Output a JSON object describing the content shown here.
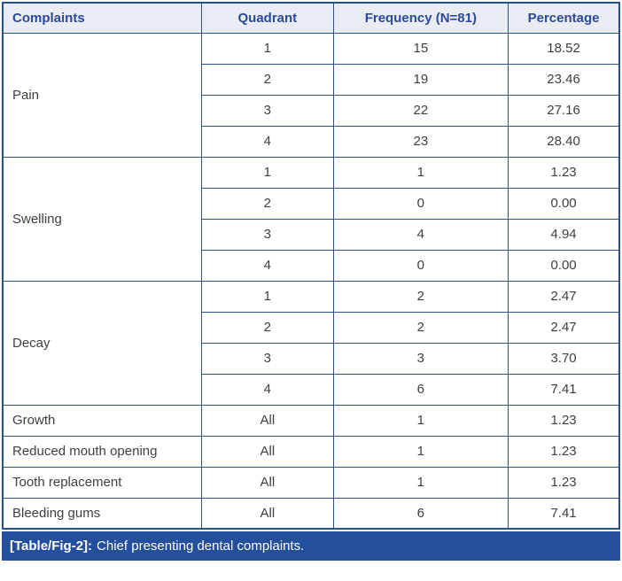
{
  "table": {
    "columns": [
      "Complaints",
      "Quadrant",
      "Frequency (N=81)",
      "Percentage"
    ],
    "groups": [
      {
        "complaint": "Pain",
        "rows": [
          {
            "quadrant": "1",
            "frequency": "15",
            "percentage": "18.52"
          },
          {
            "quadrant": "2",
            "frequency": "19",
            "percentage": "23.46"
          },
          {
            "quadrant": "3",
            "frequency": "22",
            "percentage": "27.16"
          },
          {
            "quadrant": "4",
            "frequency": "23",
            "percentage": "28.40"
          }
        ]
      },
      {
        "complaint": "Swelling",
        "rows": [
          {
            "quadrant": "1",
            "frequency": "1",
            "percentage": "1.23"
          },
          {
            "quadrant": "2",
            "frequency": "0",
            "percentage": "0.00"
          },
          {
            "quadrant": "3",
            "frequency": "4",
            "percentage": "4.94"
          },
          {
            "quadrant": "4",
            "frequency": "0",
            "percentage": "0.00"
          }
        ]
      },
      {
        "complaint": "Decay",
        "rows": [
          {
            "quadrant": "1",
            "frequency": "2",
            "percentage": "2.47"
          },
          {
            "quadrant": "2",
            "frequency": "2",
            "percentage": "2.47"
          },
          {
            "quadrant": "3",
            "frequency": "3",
            "percentage": "3.70"
          },
          {
            "quadrant": "4",
            "frequency": "6",
            "percentage": "7.41"
          }
        ]
      },
      {
        "complaint": "Growth",
        "rows": [
          {
            "quadrant": "All",
            "frequency": "1",
            "percentage": "1.23"
          }
        ]
      },
      {
        "complaint": "Reduced mouth opening",
        "rows": [
          {
            "quadrant": "All",
            "frequency": "1",
            "percentage": "1.23"
          }
        ]
      },
      {
        "complaint": "Tooth replacement",
        "rows": [
          {
            "quadrant": "All",
            "frequency": "1",
            "percentage": "1.23"
          }
        ]
      },
      {
        "complaint": "Bleeding gums",
        "rows": [
          {
            "quadrant": "All",
            "frequency": "6",
            "percentage": "7.41"
          }
        ]
      }
    ]
  },
  "caption": {
    "label": "[Table/Fig-2]:",
    "text": "Chief presenting dental complaints."
  },
  "colors": {
    "border": "#2d5381",
    "outer_border": "#26508c",
    "header_bg": "#eaecf3",
    "header_text": "#2b4a9c",
    "body_text": "#3f3f42",
    "caption_bg": "#244f9d",
    "caption_text": "#ffffff"
  },
  "chart_data": {
    "type": "table",
    "title": "[Table/Fig-2]: Chief presenting dental complaints.",
    "columns": [
      "Complaints",
      "Quadrant",
      "Frequency (N=81)",
      "Percentage"
    ],
    "rows": [
      [
        "Pain",
        "1",
        15,
        18.52
      ],
      [
        "Pain",
        "2",
        19,
        23.46
      ],
      [
        "Pain",
        "3",
        22,
        27.16
      ],
      [
        "Pain",
        "4",
        23,
        28.4
      ],
      [
        "Swelling",
        "1",
        1,
        1.23
      ],
      [
        "Swelling",
        "2",
        0,
        0.0
      ],
      [
        "Swelling",
        "3",
        4,
        4.94
      ],
      [
        "Swelling",
        "4",
        0,
        0.0
      ],
      [
        "Decay",
        "1",
        2,
        2.47
      ],
      [
        "Decay",
        "2",
        2,
        2.47
      ],
      [
        "Decay",
        "3",
        3,
        3.7
      ],
      [
        "Decay",
        "4",
        6,
        7.41
      ],
      [
        "Growth",
        "All",
        1,
        1.23
      ],
      [
        "Reduced mouth opening",
        "All",
        1,
        1.23
      ],
      [
        "Tooth replacement",
        "All",
        1,
        1.23
      ],
      [
        "Bleeding gums",
        "All",
        6,
        7.41
      ]
    ]
  }
}
